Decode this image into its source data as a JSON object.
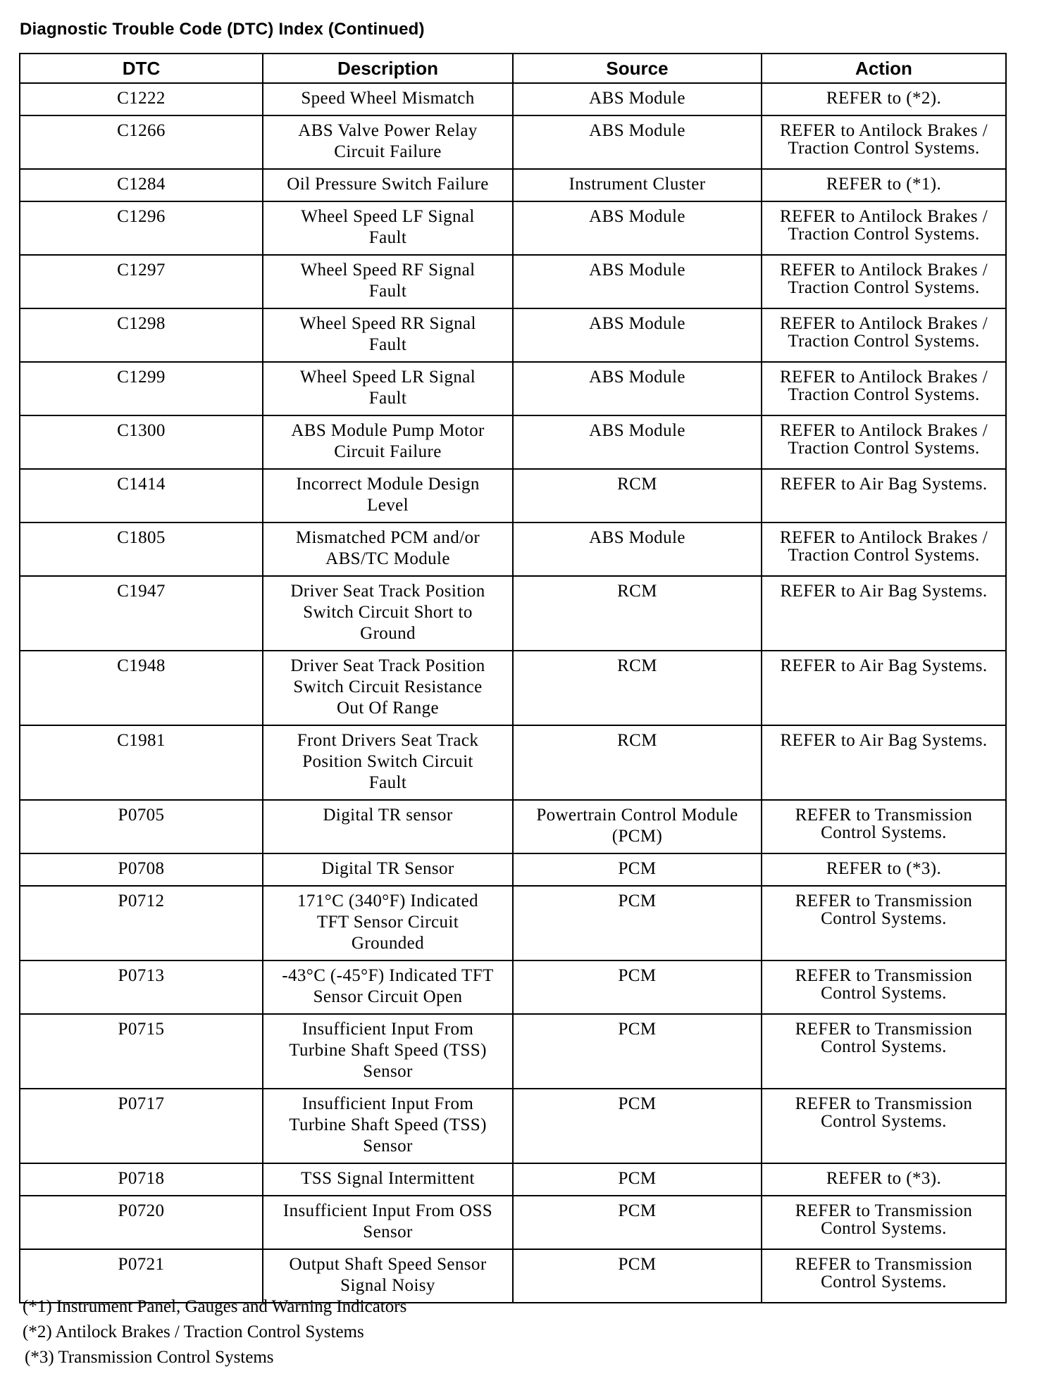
{
  "title": "Diagnostic Trouble Code (DTC) Index (Continued)",
  "headers": [
    "DTC",
    "Description",
    "Source",
    "Action"
  ],
  "rows": [
    {
      "dtc": "C1222",
      "description": "Speed Wheel Mismatch",
      "source": "ABS Module",
      "action": "REFER to (*2)."
    },
    {
      "dtc": "C1266",
      "description": "ABS Valve Power Relay Circuit Failure",
      "source": "ABS Module",
      "action": "REFER to Antilock Brakes / Traction Control Systems."
    },
    {
      "dtc": "C1284",
      "description": "Oil Pressure Switch Failure",
      "source": "Instrument Cluster",
      "action": "REFER to (*1)."
    },
    {
      "dtc": "C1296",
      "description": "Wheel Speed LF Signal Fault",
      "source": "ABS Module",
      "action": "REFER to Antilock Brakes / Traction Control Systems."
    },
    {
      "dtc": "C1297",
      "description": "Wheel Speed RF Signal Fault",
      "source": "ABS Module",
      "action": "REFER to Antilock Brakes / Traction Control Systems."
    },
    {
      "dtc": "C1298",
      "description": "Wheel Speed RR Signal Fault",
      "source": "ABS Module",
      "action": "REFER to Antilock Brakes / Traction Control Systems."
    },
    {
      "dtc": "C1299",
      "description": "Wheel Speed LR Signal Fault",
      "source": "ABS Module",
      "action": "REFER to Antilock Brakes / Traction Control Systems."
    },
    {
      "dtc": "C1300",
      "description": "ABS Module Pump Motor Circuit Failure",
      "source": "ABS Module",
      "action": "REFER to Antilock Brakes / Traction Control Systems."
    },
    {
      "dtc": "C1414",
      "description": "Incorrect Module Design Level",
      "source": "RCM",
      "action": "REFER to Air Bag Systems."
    },
    {
      "dtc": "C1805",
      "description": "Mismatched PCM and/or ABS/TC Module",
      "source": "ABS Module",
      "action": "REFER to Antilock Brakes / Traction Control Systems."
    },
    {
      "dtc": "C1947",
      "description": "Driver Seat Track Position Switch Circuit Short to Ground",
      "source": "RCM",
      "action": "REFER to Air Bag Systems."
    },
    {
      "dtc": "C1948",
      "description": "Driver Seat Track Position Switch Circuit Resistance Out Of Range",
      "source": "RCM",
      "action": "REFER to Air Bag Systems."
    },
    {
      "dtc": "C1981",
      "description": "Front Drivers Seat Track Position Switch Circuit Fault",
      "source": "RCM",
      "action": "REFER to Air Bag Systems."
    },
    {
      "dtc": "P0705",
      "description": "Digital TR sensor",
      "source": "Powertrain Control Module (PCM)",
      "action": "REFER to Transmission Control Systems."
    },
    {
      "dtc": "P0708",
      "description": "Digital TR Sensor",
      "source": "PCM",
      "action": "REFER to (*3)."
    },
    {
      "dtc": "P0712",
      "description": "171°C (340°F) Indicated TFT Sensor Circuit Grounded",
      "source": "PCM",
      "action": "REFER to Transmission Control Systems."
    },
    {
      "dtc": "P0713",
      "description": "-43°C (-45°F) Indicated TFT Sensor Circuit Open",
      "source": "PCM",
      "action": "REFER to Transmission Control Systems."
    },
    {
      "dtc": "P0715",
      "description": "Insufficient Input From Turbine Shaft Speed (TSS) Sensor",
      "source": "PCM",
      "action": "REFER to Transmission Control Systems."
    },
    {
      "dtc": "P0717",
      "description": "Insufficient Input From Turbine Shaft Speed (TSS) Sensor",
      "source": "PCM",
      "action": "REFER to Transmission Control Systems."
    },
    {
      "dtc": "P0718",
      "description": "TSS Signal Intermittent",
      "source": "PCM",
      "action": "REFER to (*3)."
    },
    {
      "dtc": "P0720",
      "description": "Insufficient Input From OSS Sensor",
      "source": "PCM",
      "action": "REFER to Transmission Control Systems."
    },
    {
      "dtc": "P0721",
      "description": "Output Shaft Speed Sensor Signal Noisy",
      "source": "PCM",
      "action": "REFER to Transmission Control Systems."
    }
  ],
  "footnotes": [
    "(*1)  Instrument Panel, Gauges and Warning Indicators",
    "(*2) Antilock Brakes / Traction Control Systems",
    "(*3) Transmission Control Systems"
  ]
}
